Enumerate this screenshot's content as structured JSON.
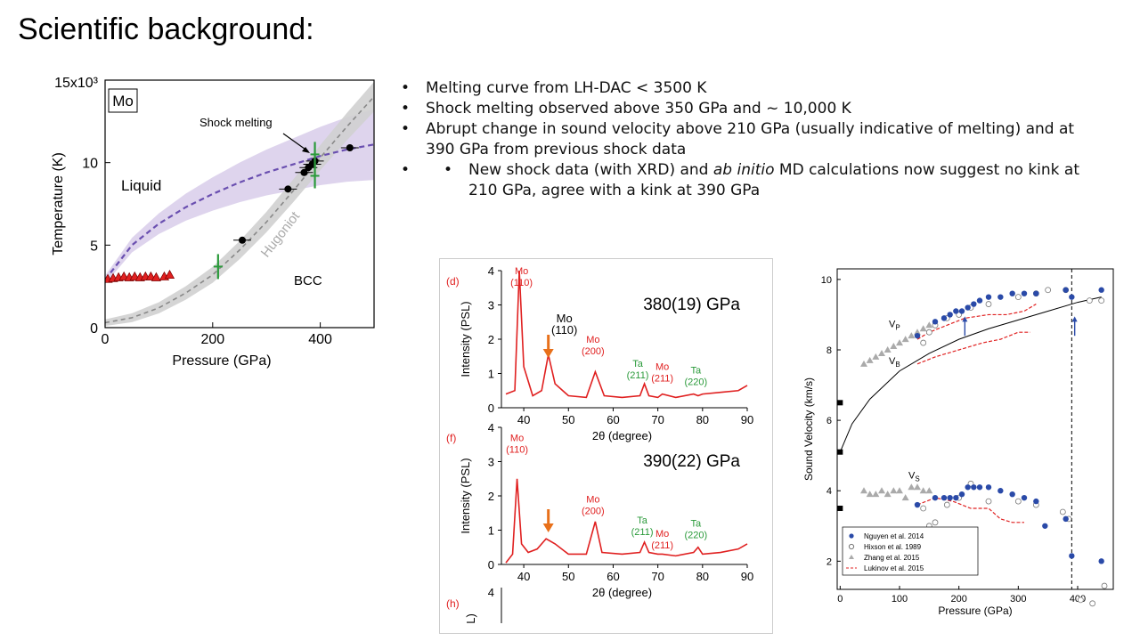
{
  "slide": {
    "title": "Scientific background:",
    "bullets": [
      "Melting curve from LH-DAC < 3500 K",
      "Shock melting observed above 350 GPa and ~ 10,000 K",
      "Abrupt change in sound velocity above 210 GPa (usually indicative of melting) and at 390 GPa from previous shock data"
    ],
    "sub_bullet": {
      "part1": "New shock data (with XRD) and ",
      "italic": "ab initio",
      "part2": " MD calculations now suggest no kink at 210 GPa, agree with a kink at 390 GPa"
    }
  },
  "colors": {
    "purple": "#6a4fb0",
    "band_purple": "#d8cdea",
    "band_gray": "#d0d0d0",
    "red": "#e02020",
    "green": "#2a9a3a",
    "blue": "#2a4aa8",
    "orange": "#e8701a"
  },
  "chart_data": [
    {
      "type": "line",
      "box_label": "Mo",
      "y_exp_label": "15x10³",
      "xlabel": "Pressure (GPa)",
      "ylabel": "Temperature (K)",
      "xlim": [
        0,
        500
      ],
      "ylim": [
        0,
        15000
      ],
      "x_ticks": [
        0,
        200,
        400
      ],
      "y_ticks": [
        0,
        5000,
        10000
      ],
      "y_tick_labels": [
        "0",
        "5",
        "10"
      ],
      "annotations": {
        "liquid": "Liquid",
        "bcc": "BCC",
        "hugoniot": "Hugoniot",
        "shock_melting": "Shock melting"
      },
      "series": [
        {
          "role": "melt-curve",
          "x": [
            0,
            50,
            100,
            150,
            200,
            250,
            300,
            350,
            400,
            450,
            500
          ],
          "y": [
            2900,
            5000,
            6300,
            7300,
            8100,
            8800,
            9400,
            9900,
            10400,
            10800,
            11100
          ]
        },
        {
          "role": "hugoniot",
          "x": [
            0,
            50,
            100,
            150,
            200,
            250,
            300,
            350,
            400,
            450,
            500
          ],
          "y": [
            300,
            600,
            1200,
            2100,
            3200,
            4700,
            6400,
            8300,
            10300,
            12200,
            14000
          ]
        },
        {
          "role": "hugoniot-points",
          "x": [
            255,
            340,
            370,
            378,
            385,
            390,
            455
          ],
          "y": [
            5300,
            8400,
            9400,
            9700,
            9900,
            10100,
            10900
          ]
        },
        {
          "role": "dac-points",
          "x": [
            5,
            15,
            25,
            35,
            45,
            55,
            65,
            75,
            85,
            95,
            110,
            120
          ],
          "y": [
            2950,
            3000,
            3050,
            3100,
            3050,
            3100,
            3050,
            3100,
            3100,
            3050,
            3100,
            3200
          ]
        },
        {
          "role": "green-marks",
          "x": [
            210,
            390,
            390
          ],
          "y": [
            3700,
            10500,
            9200
          ]
        }
      ]
    },
    {
      "type": "line",
      "panels": [
        {
          "tag": "(d)",
          "pressure": "380(19) GPa",
          "ylim": [
            0,
            4
          ],
          "y_ticks": [
            0,
            1,
            2,
            3,
            4
          ],
          "x": [
            36,
            38,
            39,
            40,
            42,
            44,
            45.5,
            47,
            50,
            54,
            56,
            58,
            62,
            66,
            67,
            68,
            70,
            71,
            74,
            78,
            79,
            80,
            84,
            88,
            90
          ],
          "y": [
            0.4,
            0.5,
            4.0,
            1.2,
            0.35,
            0.5,
            1.55,
            0.7,
            0.35,
            0.3,
            1.05,
            0.35,
            0.3,
            0.35,
            0.7,
            0.35,
            0.3,
            0.4,
            0.3,
            0.4,
            0.35,
            0.4,
            0.45,
            0.5,
            0.65
          ],
          "peaks": [
            {
              "label": "Mo",
              "sub": "(110)",
              "color": "red"
            },
            {
              "label": "Mo",
              "sub": "(110)",
              "color": "black"
            },
            {
              "label": "Mo",
              "sub": "(200)",
              "color": "red"
            },
            {
              "label": "Ta",
              "sub": "(211)",
              "color": "green"
            },
            {
              "label": "Mo",
              "sub": "(211)",
              "color": "red"
            },
            {
              "label": "Ta",
              "sub": "(220)",
              "color": "green"
            }
          ]
        },
        {
          "tag": "(f)",
          "pressure": "390(22) GPa",
          "ylim": [
            0,
            4
          ],
          "y_ticks": [
            0,
            1,
            2,
            3,
            4
          ],
          "x": [
            36,
            37.5,
            38.5,
            39.5,
            41,
            43,
            45,
            47,
            50,
            54,
            56,
            57.5,
            62,
            66,
            67,
            68,
            70,
            71,
            74,
            78,
            79,
            80,
            84,
            88,
            90
          ],
          "y": [
            0.05,
            0.3,
            2.5,
            0.6,
            0.35,
            0.45,
            0.75,
            0.6,
            0.3,
            0.3,
            1.25,
            0.35,
            0.3,
            0.35,
            0.65,
            0.35,
            0.3,
            0.3,
            0.25,
            0.35,
            0.5,
            0.3,
            0.35,
            0.45,
            0.6
          ],
          "peaks": [
            {
              "label": "Mo",
              "sub": "(110)",
              "color": "red"
            },
            {
              "label": "Mo",
              "sub": "(200)",
              "color": "red"
            },
            {
              "label": "Ta",
              "sub": "(211)",
              "color": "green"
            },
            {
              "label": "Mo",
              "sub": "(211)",
              "color": "red"
            },
            {
              "label": "Ta",
              "sub": "(220)",
              "color": "green"
            }
          ]
        },
        {
          "tag": "(h)",
          "y_ticks": [
            4
          ]
        }
      ],
      "xlabel": "2θ (degree)",
      "ylabel": "Intensity (PSL)",
      "ylabel_cut": "L)",
      "xlim": [
        35,
        90
      ],
      "x_ticks": [
        40,
        50,
        60,
        70,
        80,
        90
      ]
    },
    {
      "type": "scatter",
      "xlabel": "Pressure (GPa)",
      "ylabel": "Sound Velocity (km/s)",
      "xlim": [
        -5,
        460
      ],
      "ylim": [
        1.2,
        10.3
      ],
      "x_ticks": [
        0,
        100,
        200,
        300,
        400
      ],
      "y_ticks": [
        2,
        4,
        6,
        8,
        10
      ],
      "labels": {
        "vp": "V",
        "vp_sub": "P",
        "vb": "V",
        "vb_sub": "B",
        "vs": "V",
        "vs_sub": "S"
      },
      "series": [
        {
          "name": "Nguyen et al. 2014",
          "marker": "filled-circle",
          "x": [
            130,
            160,
            175,
            185,
            195,
            205,
            215,
            225,
            235,
            250,
            270,
            290,
            310,
            330,
            380,
            390,
            440
          ],
          "y": [
            8.4,
            8.8,
            8.9,
            9.0,
            9.1,
            9.1,
            9.2,
            9.3,
            9.4,
            9.5,
            9.5,
            9.6,
            9.6,
            9.6,
            9.7,
            9.5,
            9.7
          ],
          "vs_x": [
            130,
            160,
            175,
            185,
            195,
            205,
            215,
            225,
            235,
            250,
            270,
            290,
            310,
            330,
            345,
            380,
            390,
            440
          ],
          "vs_y": [
            3.6,
            3.8,
            3.8,
            3.8,
            3.8,
            3.9,
            4.1,
            4.1,
            4.1,
            4.1,
            4.0,
            3.9,
            3.8,
            3.7,
            3.0,
            3.2,
            2.15,
            2.0
          ]
        },
        {
          "name": "Hixson et al. 1989",
          "marker": "open-circle",
          "x": [
            140,
            150,
            160,
            180,
            200,
            220,
            250,
            300,
            330,
            350,
            380,
            420,
            440
          ],
          "y": [
            8.2,
            8.5,
            8.7,
            8.9,
            9.0,
            9.2,
            9.3,
            9.5,
            9.6,
            9.7,
            9.7,
            9.4,
            9.4
          ],
          "vs_x": [
            140,
            150,
            160,
            180,
            200,
            220,
            250,
            300,
            330,
            375,
            385,
            405,
            425,
            445
          ],
          "vs_y": [
            3.5,
            3.0,
            3.1,
            3.6,
            3.8,
            4.2,
            3.7,
            3.7,
            3.6,
            3.4,
            3.2,
            0.9,
            0.8,
            1.3
          ]
        },
        {
          "name": "Zhang et al. 2015",
          "marker": "triangle",
          "x": [
            40,
            50,
            60,
            70,
            80,
            90,
            100,
            110,
            120,
            130,
            140,
            150
          ],
          "y": [
            7.6,
            7.7,
            7.8,
            7.9,
            8.0,
            8.1,
            8.2,
            8.3,
            8.4,
            8.5,
            8.6,
            8.7
          ],
          "vs_x": [
            40,
            50,
            60,
            70,
            80,
            90,
            100,
            110,
            120,
            130,
            140,
            150
          ],
          "vs_y": [
            4.0,
            3.9,
            3.9,
            4.0,
            3.9,
            4.0,
            4.0,
            3.8,
            4.1,
            4.1,
            4.0,
            4.0
          ]
        },
        {
          "name": "Lukinov et al. 2015",
          "marker": "red-dashed",
          "vp_x": [
            130,
            150,
            180,
            210,
            250,
            280,
            310,
            330
          ],
          "vp_y": [
            8.3,
            8.5,
            8.7,
            8.9,
            9.0,
            9.0,
            9.1,
            9.3
          ],
          "vb_x": [
            130,
            160,
            200,
            240,
            270,
            300,
            320
          ],
          "vb_y": [
            7.6,
            7.8,
            8.0,
            8.2,
            8.3,
            8.5,
            8.5
          ],
          "vs_x": [
            130,
            160,
            190,
            220,
            250,
            270,
            290,
            310
          ],
          "vs_y": [
            3.6,
            3.8,
            3.7,
            3.5,
            3.5,
            3.2,
            3.1,
            3.1
          ]
        },
        {
          "name": "bulk-curve",
          "x": [
            0,
            20,
            50,
            100,
            150,
            200,
            250,
            300,
            350,
            400,
            440
          ],
          "y": [
            5.1,
            5.9,
            6.6,
            7.4,
            7.9,
            8.3,
            8.6,
            8.85,
            9.1,
            9.35,
            9.5
          ]
        },
        {
          "name": "ambient",
          "marker": "square",
          "x": [
            0,
            0,
            0
          ],
          "y": [
            6.5,
            5.1,
            3.5
          ]
        }
      ],
      "arrows_x": [
        210,
        395
      ],
      "dashed_x": 390
    }
  ]
}
